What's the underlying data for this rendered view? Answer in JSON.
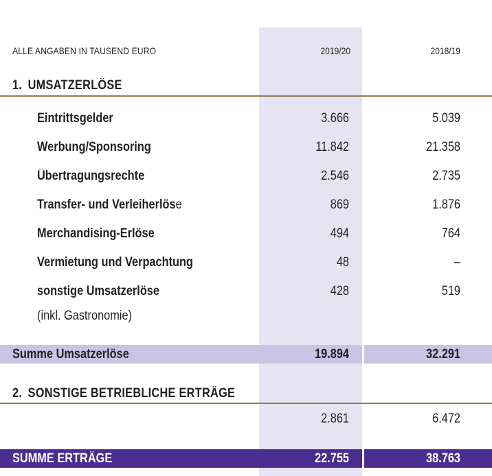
{
  "header": {
    "unit_label": "ALLE ANGABEN IN TAUSEND EURO",
    "year_current": "2019/20",
    "year_previous": "2018/19"
  },
  "section1": {
    "title": "1. UMSATZERLÖSE",
    "items": [
      {
        "label": "Eintrittsgelder",
        "v2019": "3.666",
        "v2018": "5.039"
      },
      {
        "label": "Werbung/Sponsoring",
        "v2019": "11.842",
        "v2018": "21.358"
      },
      {
        "label": "Übertragungsrechte",
        "v2019": "2.546",
        "v2018": "2.735"
      },
      {
        "label": "Transfer- und Verleiherlös",
        "label_suffix": "e",
        "v2019": "869",
        "v2018": "1.876"
      },
      {
        "label": "Merchandising-Erlöse",
        "v2019": "494",
        "v2018": "764"
      },
      {
        "label": "Vermietung und Verpachtung",
        "v2019": "48",
        "v2018": "–"
      },
      {
        "label": "sonstige Umsatzerlöse",
        "sublabel": "(inkl. Gastronomie)",
        "v2019": "428",
        "v2018": "519"
      }
    ],
    "sum": {
      "label": "Summe Umsatzerlöse",
      "v2019": "19.894",
      "v2018": "32.291"
    }
  },
  "section2": {
    "title": "2. SONSTIGE BETRIEBLICHE ERTRÄGE",
    "v2019": "2.861",
    "v2018": "6.472"
  },
  "total": {
    "label": "SUMME ERTRÄGE",
    "v2019": "22.755",
    "v2018": "38.763"
  },
  "colors": {
    "band": "#e6e4f2",
    "rule": "#8d7d4e",
    "sum_bar": "#c9c4e3",
    "total_bar": "#4a2d8f"
  }
}
